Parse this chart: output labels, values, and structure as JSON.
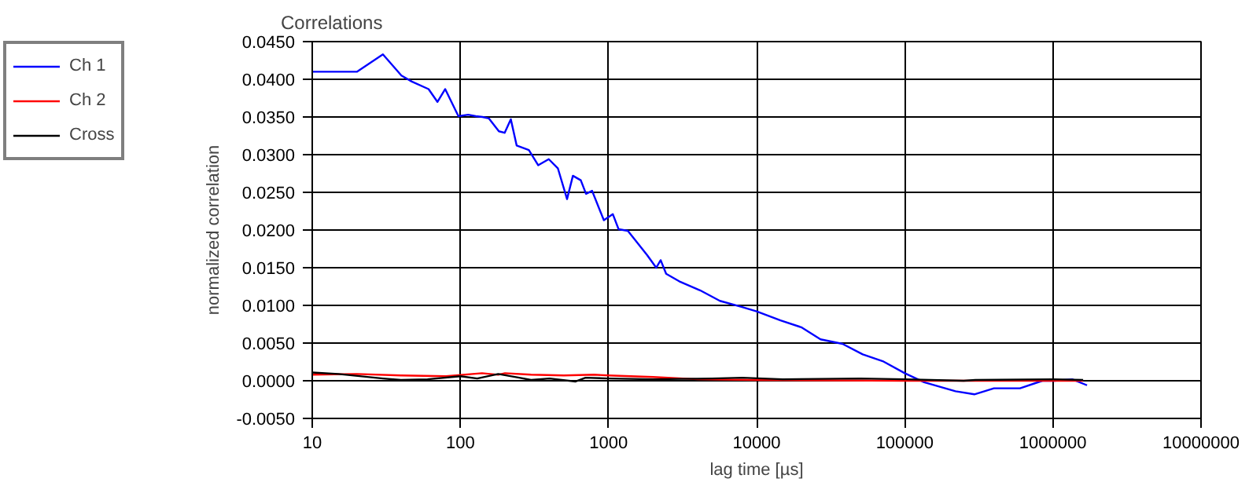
{
  "chart_data": {
    "type": "line",
    "title": "Correlations",
    "xlabel": "lag time [µs]",
    "ylabel": "normalized correlation",
    "log": "x",
    "grid": true,
    "legend": "left",
    "line_style": "solid",
    "xlim": [
      10,
      10000000
    ],
    "xticks": [
      10,
      100,
      1000,
      10000,
      100000,
      1000000,
      10000000
    ],
    "ylim": [
      -0.005,
      0.045
    ],
    "yticks": [
      {
        "value": -0.005,
        "label": "-0.0050"
      },
      {
        "value": 0,
        "label": "0.0000"
      },
      {
        "value": 0.005,
        "label": "0.0050"
      },
      {
        "value": 0.01,
        "label": "0.0100"
      },
      {
        "value": 0.015,
        "label": "0.0150"
      },
      {
        "value": 0.02,
        "label": "0.0200"
      },
      {
        "value": 0.025,
        "label": "0.0250"
      },
      {
        "value": 0.03,
        "label": "0.0300"
      },
      {
        "value": 0.035,
        "label": "0.0350"
      },
      {
        "value": 0.04,
        "label": "0.0400"
      },
      {
        "value": 0.045,
        "label": "0.0450"
      }
    ],
    "series": [
      {
        "name": "Ch 1",
        "color": "#0000ff",
        "x": [
          10,
          20,
          30,
          40,
          47,
          61,
          70,
          79,
          97,
          113,
          127,
          141,
          156,
          182,
          199,
          219,
          240,
          290,
          335,
          395,
          455,
          525,
          575,
          650,
          705,
          775,
          930,
          1070,
          1170,
          1350,
          1510,
          1820,
          2100,
          2250,
          2450,
          3000,
          4150,
          5650,
          7900,
          10000,
          14500,
          20000,
          27000,
          38000,
          52000,
          71000,
          100000,
          135000,
          220000,
          295000,
          400000,
          600000,
          850000,
          1030000,
          1350000,
          1700000
        ],
        "values": [
          0.041,
          0.041,
          0.0433,
          0.0405,
          0.0397,
          0.0387,
          0.037,
          0.0387,
          0.0351,
          0.0353,
          0.0351,
          0.035,
          0.0348,
          0.0331,
          0.0329,
          0.0347,
          0.0312,
          0.0306,
          0.0286,
          0.0294,
          0.0282,
          0.0241,
          0.0272,
          0.0266,
          0.0248,
          0.0252,
          0.0213,
          0.0221,
          0.0201,
          0.0199,
          0.0187,
          0.0167,
          0.015,
          0.016,
          0.0142,
          0.0132,
          0.012,
          0.0106,
          0.0098,
          0.0092,
          0.008,
          0.0071,
          0.0055,
          0.0049,
          0.0035,
          0.0026,
          0.001,
          -0.0002,
          -0.0014,
          -0.0018,
          -0.001,
          -0.001,
          0.0,
          0.0,
          0.0002,
          -0.0006
        ]
      },
      {
        "name": "Ch 2",
        "color": "#ff0000",
        "x": [
          10,
          20,
          40,
          80,
          140,
          180,
          200,
          300,
          500,
          800,
          1000,
          2000,
          4000,
          10000,
          100000,
          1000000,
          1600000
        ],
        "values": [
          0.0008,
          0.0009,
          0.0007,
          0.0006,
          0.001,
          0.0008,
          0.001,
          0.0008,
          0.0007,
          0.0008,
          0.0007,
          0.0005,
          0.0002,
          0.0001,
          0.0,
          0.0,
          0.0
        ]
      },
      {
        "name": "Cross",
        "color": "#000000",
        "x": [
          10,
          15,
          30,
          40,
          60,
          100,
          130,
          180,
          250,
          300,
          400,
          600,
          700,
          1000,
          2000,
          5000,
          8000,
          15000,
          50000,
          100000,
          250000,
          300000,
          1000000,
          1600000
        ],
        "values": [
          0.0011,
          0.0009,
          0.0003,
          0.0001,
          0.0002,
          0.0006,
          0.0003,
          0.0009,
          0.0004,
          0.0001,
          0.0003,
          -0.0001,
          0.0004,
          0.0003,
          0.0002,
          0.0003,
          0.0004,
          0.0002,
          0.0003,
          0.0002,
          0.0,
          0.0001,
          0.0002,
          0.0001
        ]
      }
    ]
  }
}
